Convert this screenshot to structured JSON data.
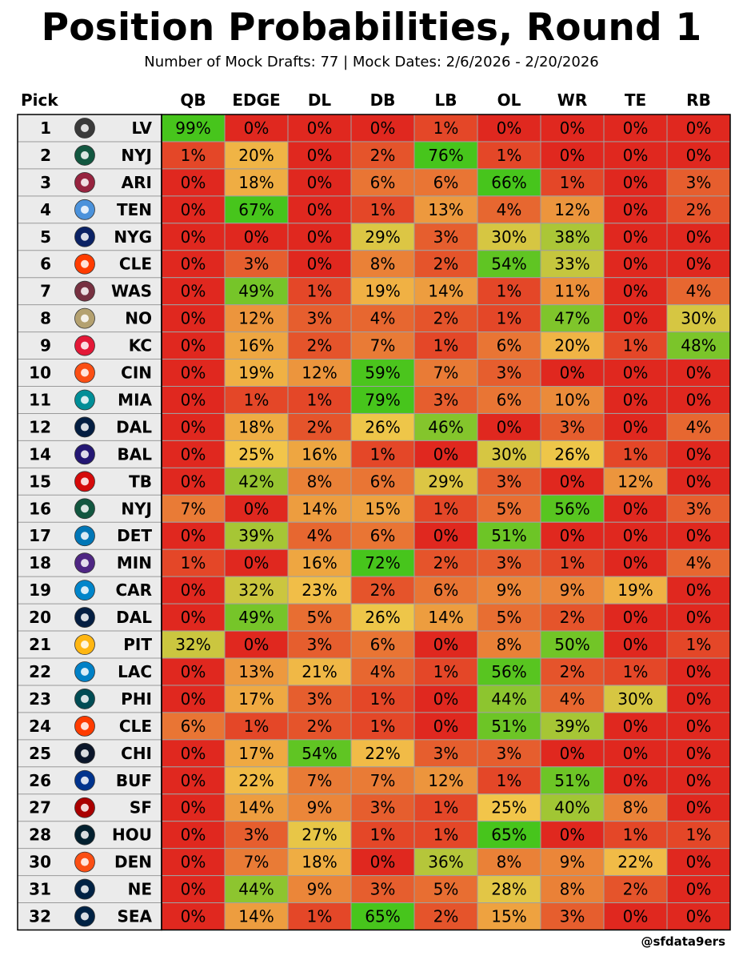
{
  "title": "Position Probabilities, Round 1",
  "subtitle": "Number of Mock Drafts: 77 | Mock Dates: 2/6/2026 - 2/20/2026",
  "credit": "@sfdata9ers",
  "chart_data": {
    "type": "heatmap",
    "title": "Position Probabilities, Round 1",
    "subtitle": "Number of Mock Drafts: 77 | Mock Dates: 2/6/2026 - 2/20/2026",
    "row_header": "Pick",
    "columns": [
      "QB",
      "EDGE",
      "DL",
      "DB",
      "LB",
      "OL",
      "WR",
      "TE",
      "RB"
    ],
    "value_suffix": "%",
    "color_scale": {
      "low": "#e0281f",
      "mid": "#f2c64a",
      "high": "#47c51c"
    },
    "rows": [
      {
        "pick": "1",
        "team": "LV",
        "values": [
          99,
          0,
          0,
          0,
          1,
          0,
          0,
          0,
          0
        ]
      },
      {
        "pick": "2",
        "team": "NYJ",
        "values": [
          1,
          20,
          0,
          2,
          76,
          1,
          0,
          0,
          0
        ]
      },
      {
        "pick": "3",
        "team": "ARI",
        "values": [
          0,
          18,
          0,
          6,
          6,
          66,
          1,
          0,
          3
        ]
      },
      {
        "pick": "4",
        "team": "TEN",
        "values": [
          0,
          67,
          0,
          1,
          13,
          4,
          12,
          0,
          2
        ]
      },
      {
        "pick": "5",
        "team": "NYG",
        "values": [
          0,
          0,
          0,
          29,
          3,
          30,
          38,
          0,
          0
        ]
      },
      {
        "pick": "6",
        "team": "CLE",
        "values": [
          0,
          3,
          0,
          8,
          2,
          54,
          33,
          0,
          0
        ]
      },
      {
        "pick": "7",
        "team": "WAS",
        "values": [
          0,
          49,
          1,
          19,
          14,
          1,
          11,
          0,
          4
        ]
      },
      {
        "pick": "8",
        "team": "NO",
        "values": [
          0,
          12,
          3,
          4,
          2,
          1,
          47,
          0,
          30
        ]
      },
      {
        "pick": "9",
        "team": "KC",
        "values": [
          0,
          16,
          2,
          7,
          1,
          6,
          20,
          1,
          48
        ]
      },
      {
        "pick": "10",
        "team": "CIN",
        "values": [
          0,
          19,
          12,
          59,
          7,
          3,
          0,
          0,
          0
        ]
      },
      {
        "pick": "11",
        "team": "MIA",
        "values": [
          0,
          1,
          1,
          79,
          3,
          6,
          10,
          0,
          0
        ]
      },
      {
        "pick": "12",
        "team": "DAL",
        "values": [
          0,
          18,
          2,
          26,
          46,
          0,
          3,
          0,
          4
        ]
      },
      {
        "pick": "14",
        "team": "BAL",
        "values": [
          0,
          25,
          16,
          1,
          0,
          30,
          26,
          1,
          0
        ]
      },
      {
        "pick": "15",
        "team": "TB",
        "values": [
          0,
          42,
          8,
          6,
          29,
          3,
          0,
          12,
          0
        ]
      },
      {
        "pick": "16",
        "team": "NYJ",
        "values": [
          7,
          0,
          14,
          15,
          1,
          5,
          56,
          0,
          3
        ]
      },
      {
        "pick": "17",
        "team": "DET",
        "values": [
          0,
          39,
          4,
          6,
          0,
          51,
          0,
          0,
          0
        ]
      },
      {
        "pick": "18",
        "team": "MIN",
        "values": [
          1,
          0,
          16,
          72,
          2,
          3,
          1,
          0,
          4
        ]
      },
      {
        "pick": "19",
        "team": "CAR",
        "values": [
          0,
          32,
          23,
          2,
          6,
          9,
          9,
          19,
          0
        ]
      },
      {
        "pick": "20",
        "team": "DAL",
        "values": [
          0,
          49,
          5,
          26,
          14,
          5,
          2,
          0,
          0
        ]
      },
      {
        "pick": "21",
        "team": "PIT",
        "values": [
          32,
          0,
          3,
          6,
          0,
          8,
          50,
          0,
          1
        ]
      },
      {
        "pick": "22",
        "team": "LAC",
        "values": [
          0,
          13,
          21,
          4,
          1,
          56,
          2,
          1,
          0
        ]
      },
      {
        "pick": "23",
        "team": "PHI",
        "values": [
          0,
          17,
          3,
          1,
          0,
          44,
          4,
          30,
          0
        ]
      },
      {
        "pick": "24",
        "team": "CLE",
        "values": [
          6,
          1,
          2,
          1,
          0,
          51,
          39,
          0,
          0
        ]
      },
      {
        "pick": "25",
        "team": "CHI",
        "values": [
          0,
          17,
          54,
          22,
          3,
          3,
          0,
          0,
          0
        ]
      },
      {
        "pick": "26",
        "team": "BUF",
        "values": [
          0,
          22,
          7,
          7,
          12,
          1,
          51,
          0,
          0
        ]
      },
      {
        "pick": "27",
        "team": "SF",
        "values": [
          0,
          14,
          9,
          3,
          1,
          25,
          40,
          8,
          0
        ]
      },
      {
        "pick": "28",
        "team": "HOU",
        "values": [
          0,
          3,
          27,
          1,
          1,
          65,
          0,
          1,
          1
        ]
      },
      {
        "pick": "30",
        "team": "DEN",
        "values": [
          0,
          7,
          18,
          0,
          36,
          8,
          9,
          22,
          0
        ]
      },
      {
        "pick": "31",
        "team": "NE",
        "values": [
          0,
          44,
          9,
          3,
          5,
          28,
          8,
          2,
          0
        ]
      },
      {
        "pick": "32",
        "team": "SEA",
        "values": [
          0,
          14,
          1,
          65,
          2,
          15,
          3,
          0,
          0
        ]
      }
    ],
    "team_logos": {
      "LV": "raiders-shield-logo",
      "NYJ": "jets-oval-logo",
      "ARI": "cardinal-head-logo",
      "TEN": "titans-t-logo",
      "NYG": "ny-logo",
      "CLE": "browns-helmet-logo",
      "WAS": "commanders-w-logo",
      "NO": "fleur-de-lis-logo",
      "KC": "chiefs-arrowhead-logo",
      "CIN": "bengals-stripes-logo",
      "MIA": "dolphin-logo",
      "DAL": "star-logo",
      "BAL": "raven-head-logo",
      "TB": "buccaneers-flag-logo",
      "DET": "lion-logo",
      "MIN": "viking-head-logo",
      "CAR": "panther-head-logo",
      "PIT": "steelers-hypocycloid-logo",
      "LAC": "bolt-logo",
      "PHI": "eagle-head-logo",
      "CHI": "bear-head-logo",
      "BUF": "bison-logo",
      "SF": "sf-oval-logo",
      "HOU": "bull-head-logo",
      "DEN": "horse-head-logo",
      "NE": "flying-elvis-logo",
      "SEA": "seahawk-head-logo"
    },
    "team_colors": {
      "LV": "#3a3a3a",
      "NYJ": "#125740",
      "ARI": "#97233f",
      "TEN": "#4b92db",
      "NYG": "#0b2265",
      "CLE": "#ff3c00",
      "WAS": "#773141",
      "NO": "#b4a170",
      "KC": "#e31837",
      "CIN": "#fb4f14",
      "MIA": "#008e97",
      "DAL": "#041e42",
      "BAL": "#241773",
      "TB": "#d50a0a",
      "DET": "#0076b6",
      "MIN": "#4f2683",
      "CAR": "#0085ca",
      "PIT": "#ffb612",
      "LAC": "#0080c6",
      "PHI": "#004c54",
      "CHI": "#0b162a",
      "BUF": "#00338d",
      "SF": "#aa0000",
      "HOU": "#03202f",
      "DEN": "#fb4f14",
      "NE": "#002244",
      "SEA": "#002244"
    }
  }
}
